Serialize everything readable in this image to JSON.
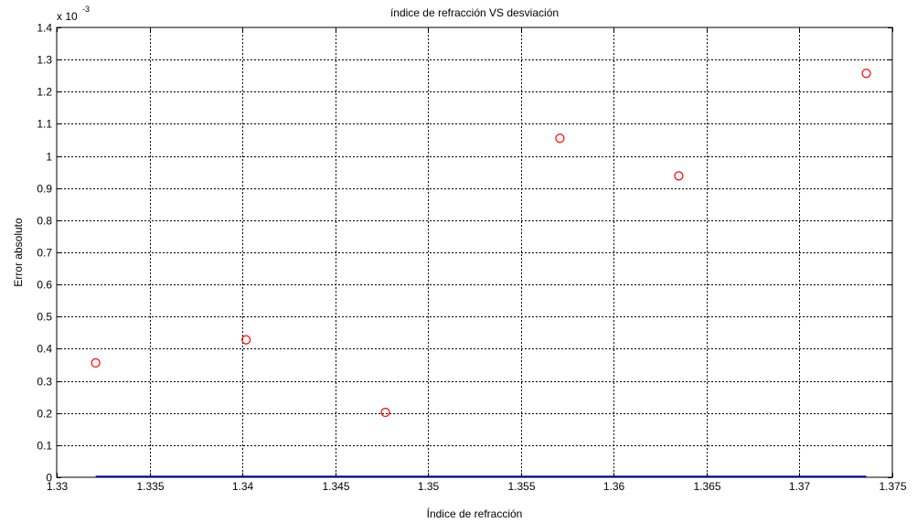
{
  "chart_data": {
    "type": "scatter",
    "title": "índice de refracción VS desviación",
    "xlabel": "Índice de refracción",
    "ylabel": "Error absoluto",
    "y_multiplier": "x 10",
    "y_exponent": "-3",
    "xlim": [
      1.33,
      1.375
    ],
    "ylim": [
      0,
      1.4
    ],
    "x_ticks": [
      1.33,
      1.335,
      1.34,
      1.345,
      1.35,
      1.355,
      1.36,
      1.365,
      1.37,
      1.375
    ],
    "x_tick_labels": [
      "1.33",
      "1.335",
      "1.34",
      "1.345",
      "1.35",
      "1.355",
      "1.36",
      "1.365",
      "1.37",
      "1.375"
    ],
    "y_ticks": [
      0,
      0.1,
      0.2,
      0.3,
      0.4,
      0.5,
      0.6,
      0.7,
      0.8,
      0.9,
      1,
      1.1,
      1.2,
      1.3,
      1.4
    ],
    "y_tick_labels": [
      "0",
      "0.1",
      "0.2",
      "0.3",
      "0.4",
      "0.5",
      "0.6",
      "0.7",
      "0.8",
      "0.9",
      "1",
      "1.1",
      "1.2",
      "1.3",
      "1.4"
    ],
    "grid": true,
    "grid_style": "dotted",
    "marker": "circle-open",
    "marker_color": "#ff0000",
    "baseline_color": "#0000ff",
    "points": [
      {
        "x": 1.3321,
        "y": 0.356
      },
      {
        "x": 1.3402,
        "y": 0.428
      },
      {
        "x": 1.3477,
        "y": 0.202
      },
      {
        "x": 1.3571,
        "y": 1.055
      },
      {
        "x": 1.3635,
        "y": 0.938
      },
      {
        "x": 1.3736,
        "y": 1.257
      }
    ],
    "baseline": {
      "y": 0,
      "x_from": 1.3321,
      "x_to": 1.3736
    }
  }
}
